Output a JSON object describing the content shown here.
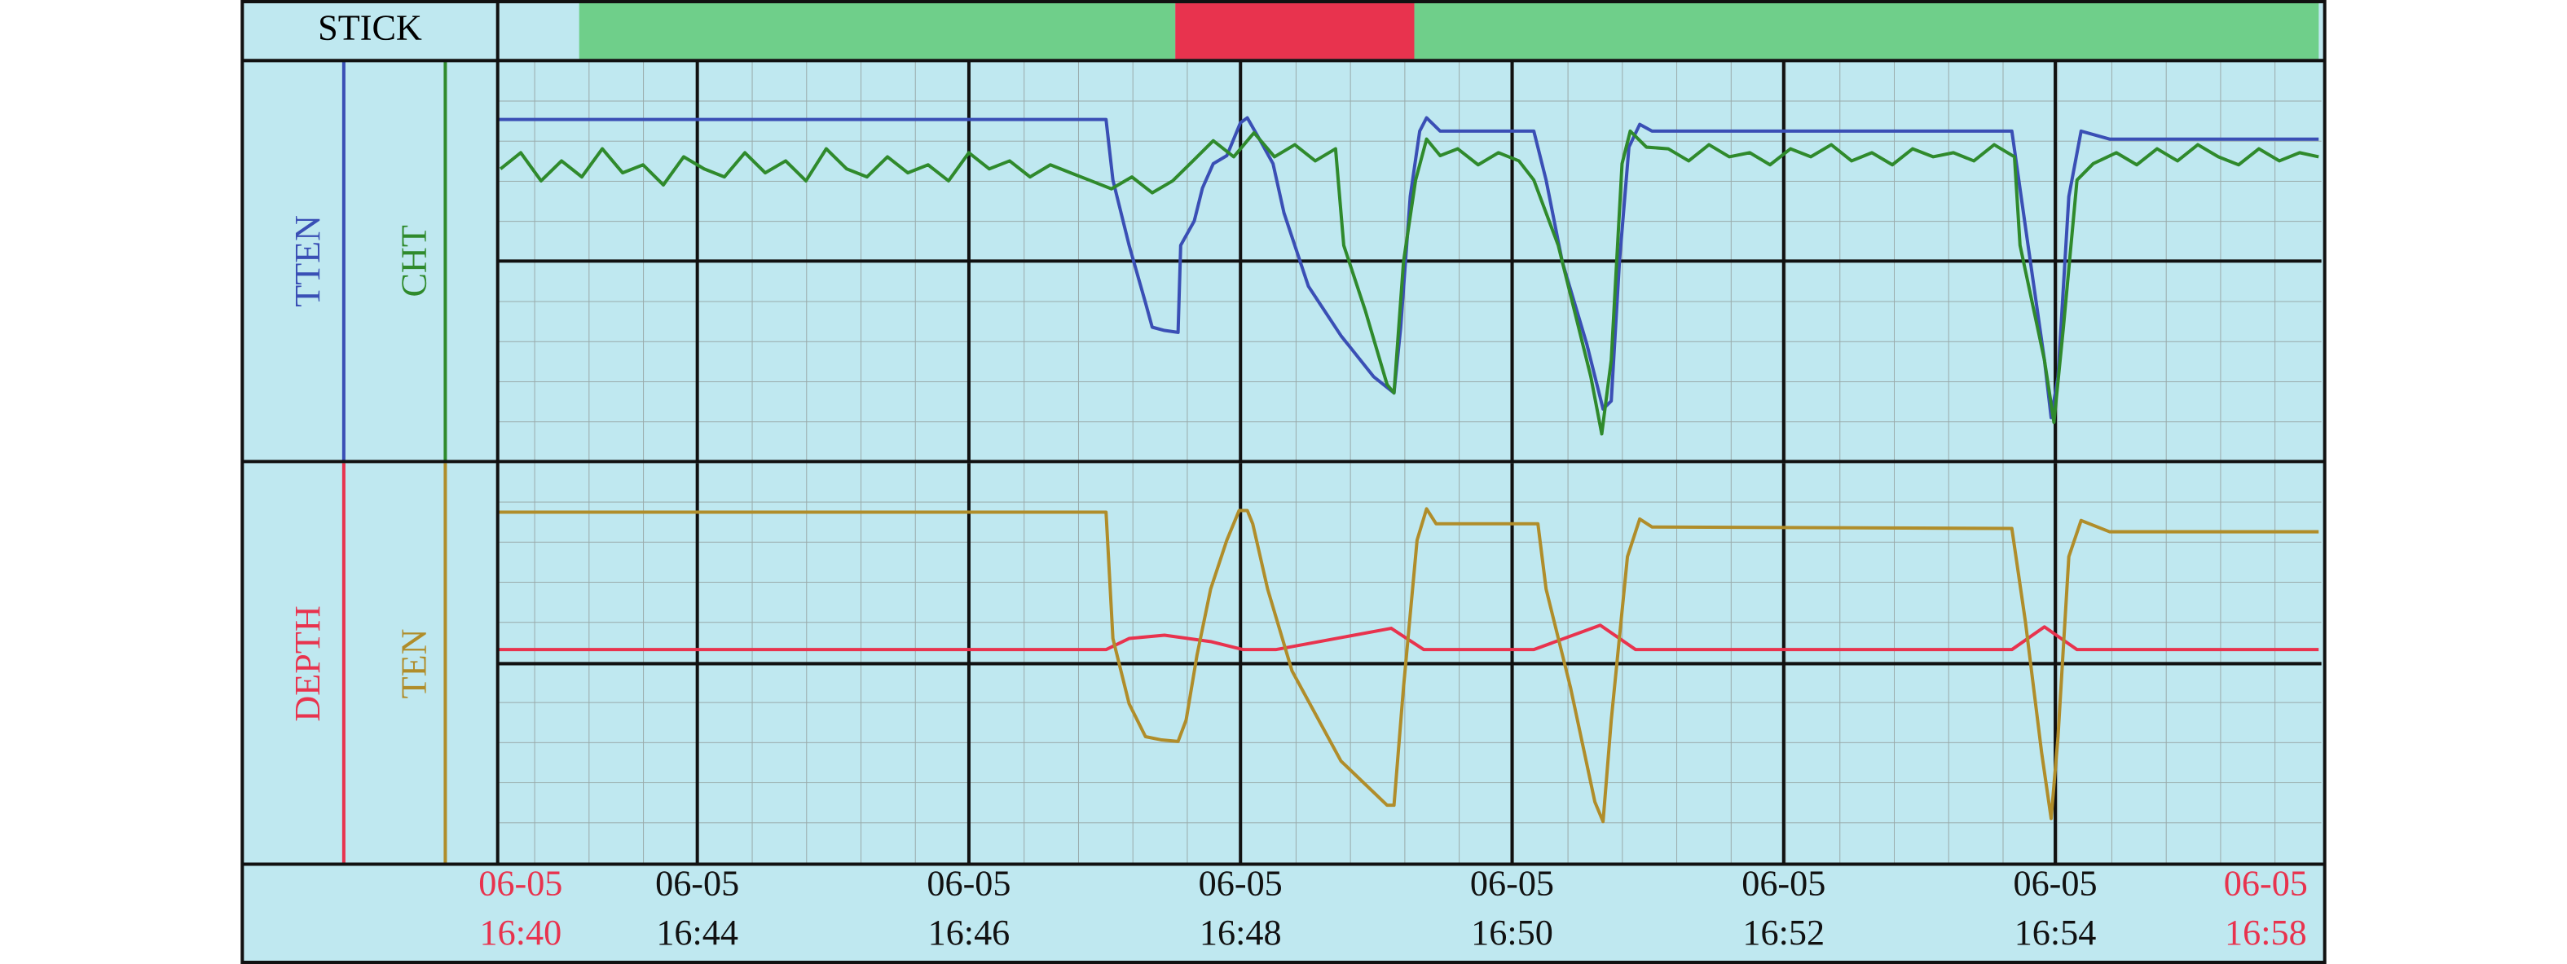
{
  "chart_data": [
    {
      "type": "strip",
      "title": "STICK",
      "xlim": [
        42.53,
        55.96
      ],
      "segments": [
        {
          "start": 43.13,
          "end": 47.52,
          "color": "#6fcf8a"
        },
        {
          "start": 47.52,
          "end": 49.28,
          "color": "#e8334e"
        },
        {
          "start": 49.28,
          "end": 55.94,
          "color": "#6fcf8a"
        }
      ]
    },
    {
      "type": "line",
      "xlim": [
        42.53,
        55.96
      ],
      "ylim": [
        0,
        100
      ],
      "yticks": [
        50
      ],
      "series": [
        {
          "name": "TTEN",
          "color": "#3a4fb5",
          "x": [
            42.53,
            47.01,
            47.06,
            47.18,
            47.3,
            47.35,
            47.44,
            47.54,
            47.56,
            47.66,
            47.72,
            47.8,
            47.9,
            48.0,
            48.05,
            48.14,
            48.24,
            48.32,
            48.5,
            48.74,
            48.98,
            49.13,
            49.18,
            49.25,
            49.32,
            49.37,
            49.47,
            50.16,
            50.25,
            50.37,
            50.55,
            50.67,
            50.73,
            50.79,
            50.86,
            50.94,
            51.03,
            53.68,
            53.8,
            53.92,
            53.97,
            54.02,
            54.1,
            54.19,
            54.4,
            55.94
          ],
          "values": [
            85.3,
            85.3,
            70.2,
            53.9,
            39.6,
            33.5,
            32.7,
            32.2,
            53.9,
            60,
            68.2,
            74.3,
            76.3,
            84.5,
            85.7,
            80.4,
            74.3,
            62,
            43.7,
            31.4,
            21.2,
            17.1,
            33.5,
            66.1,
            82.4,
            85.7,
            82.4,
            82.4,
            70.2,
            49.8,
            29.4,
            13.1,
            15.1,
            49.8,
            78.4,
            84.1,
            82.4,
            82.4,
            53.9,
            25.3,
            11,
            21.2,
            66.1,
            82.4,
            80.4,
            80.4
          ]
        },
        {
          "name": "CHT",
          "color": "#2f8a2c",
          "x": [
            42.55,
            42.7,
            42.85,
            43.0,
            43.15,
            43.3,
            43.45,
            43.6,
            43.75,
            43.9,
            44.05,
            44.2,
            44.35,
            44.5,
            44.65,
            44.8,
            44.95,
            45.1,
            45.25,
            45.4,
            45.55,
            45.7,
            45.85,
            46.0,
            46.15,
            46.3,
            46.45,
            46.6,
            46.75,
            46.9,
            47.05,
            47.2,
            47.35,
            47.5,
            47.65,
            47.8,
            47.95,
            48.1,
            48.25,
            48.4,
            48.55,
            48.7,
            48.76,
            48.92,
            49.08,
            49.13,
            49.2,
            49.29,
            49.37,
            49.47,
            49.6,
            49.75,
            49.9,
            50.05,
            50.16,
            50.34,
            50.58,
            50.66,
            50.73,
            50.81,
            50.87,
            50.99,
            51.15,
            51.3,
            51.45,
            51.6,
            51.75,
            51.9,
            52.05,
            52.2,
            52.35,
            52.5,
            52.65,
            52.8,
            52.95,
            53.1,
            53.25,
            53.4,
            53.55,
            53.7,
            53.74,
            53.92,
            53.99,
            54.06,
            54.16,
            54.28,
            54.45,
            54.6,
            54.75,
            54.9,
            55.05,
            55.2,
            55.35,
            55.5,
            55.65,
            55.8,
            55.94
          ],
          "values": [
            73,
            77,
            70,
            75,
            71,
            78,
            72,
            74,
            69,
            76,
            73,
            71,
            77,
            72,
            75,
            70,
            78,
            73,
            71,
            76,
            72,
            74,
            70,
            77,
            73,
            75,
            71,
            74,
            72,
            70,
            68,
            71,
            67,
            70,
            75,
            80,
            76,
            82,
            76,
            79,
            75,
            78,
            53.9,
            37.6,
            19.2,
            17.1,
            49.8,
            70.2,
            80.4,
            76.3,
            78,
            74,
            77,
            75,
            70.2,
            53.9,
            21.2,
            6.9,
            25.3,
            74.3,
            82.4,
            78.4,
            78,
            75,
            79,
            76,
            77,
            74,
            78,
            76,
            79,
            75,
            77,
            74,
            78,
            76,
            77,
            75,
            79,
            76,
            53.9,
            25.3,
            9.8,
            33.5,
            70.2,
            74.3,
            77,
            74,
            78,
            75,
            79,
            76,
            74,
            78,
            75,
            77,
            76
          ]
        }
      ]
    },
    {
      "type": "line",
      "xlim": [
        42.53,
        55.96
      ],
      "ylim": [
        0,
        100
      ],
      "yticks": [
        50
      ],
      "xticks": [
        {
          "value": 44,
          "label": "06-05 16:44"
        },
        {
          "value": 46,
          "label": "06-05 16:46"
        },
        {
          "value": 48,
          "label": "06-05 16:48"
        },
        {
          "value": 50,
          "label": "06-05 16:50"
        },
        {
          "value": 52,
          "label": "06-05 16:52"
        },
        {
          "value": 54,
          "label": "06-05 16:54"
        }
      ],
      "start_label": "06-05 16:40",
      "end_label": "06-05 16:58",
      "series": [
        {
          "name": "DEPTH",
          "color": "#e8334e",
          "x": [
            42.53,
            47.01,
            47.18,
            47.44,
            47.78,
            48.02,
            48.26,
            49.11,
            49.35,
            50.16,
            50.65,
            50.91,
            53.68,
            53.92,
            54.16,
            55.94
          ],
          "values": [
            53.5,
            53.5,
            56.3,
            57.1,
            55.5,
            53.5,
            53.5,
            58.8,
            53.5,
            53.5,
            59.6,
            53.5,
            53.5,
            59.2,
            53.5,
            53.5
          ]
        },
        {
          "name": "TEN",
          "color": "#b08d2a",
          "x": [
            42.53,
            47.01,
            47.06,
            47.18,
            47.3,
            47.42,
            47.54,
            47.6,
            47.68,
            47.78,
            47.9,
            47.99,
            48.05,
            48.09,
            48.2,
            48.38,
            48.74,
            49.08,
            49.13,
            49.2,
            49.3,
            49.37,
            49.44,
            50.19,
            50.25,
            50.43,
            50.61,
            50.67,
            50.73,
            50.85,
            50.94,
            51.03,
            53.68,
            53.78,
            53.9,
            53.97,
            54.02,
            54.1,
            54.19,
            54.4,
            55.94
          ],
          "values": [
            87.8,
            87.8,
            56.3,
            40,
            31.8,
            31,
            30.6,
            35.9,
            52.2,
            68.6,
            80.8,
            88.2,
            88.2,
            84.9,
            68.6,
            48.2,
            25.7,
            14.7,
            14.7,
            44.1,
            80.8,
            88.6,
            84.9,
            84.9,
            68.6,
            44.1,
            15.5,
            10.6,
            35.9,
            76.7,
            86.1,
            84.1,
            83.7,
            60.4,
            27.8,
            11.4,
            31.8,
            76.7,
            85.7,
            82.9,
            82.9
          ]
        }
      ]
    }
  ]
}
